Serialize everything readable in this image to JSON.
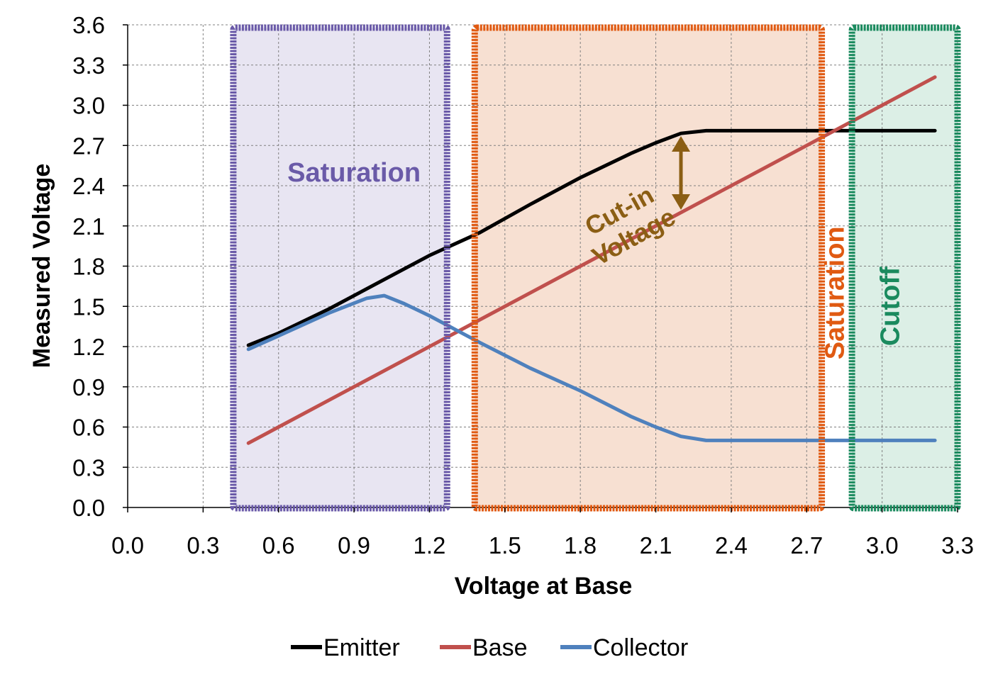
{
  "chart_data": {
    "type": "line",
    "xlabel": "Voltage at Base",
    "ylabel": "Measured Voltage",
    "xlim": [
      0.0,
      3.3
    ],
    "ylim": [
      0.0,
      3.6
    ],
    "xticks": [
      "0.0",
      "0.3",
      "0.6",
      "0.9",
      "1.2",
      "1.5",
      "1.8",
      "2.1",
      "2.4",
      "2.7",
      "3.0",
      "3.3"
    ],
    "yticks": [
      "0.0",
      "0.3",
      "0.6",
      "0.9",
      "1.2",
      "1.5",
      "1.8",
      "2.1",
      "2.4",
      "2.7",
      "3.0",
      "3.3",
      "3.6"
    ],
    "grid": true,
    "legend_position": "bottom",
    "series": [
      {
        "name": "Emitter",
        "color": "#000000",
        "x": [
          0.48,
          0.6,
          0.8,
          1.0,
          1.2,
          1.4,
          1.6,
          1.8,
          2.0,
          2.1,
          2.2,
          2.3,
          2.5,
          2.8,
          3.0,
          3.21
        ],
        "y": [
          1.21,
          1.3,
          1.48,
          1.68,
          1.88,
          2.05,
          2.26,
          2.46,
          2.64,
          2.72,
          2.79,
          2.81,
          2.81,
          2.81,
          2.81,
          2.81
        ]
      },
      {
        "name": "Base",
        "color": "#c0504d",
        "x": [
          0.48,
          3.21
        ],
        "y": [
          0.48,
          3.21
        ]
      },
      {
        "name": "Collector",
        "color": "#4f81bd",
        "x": [
          0.48,
          0.6,
          0.8,
          0.95,
          1.02,
          1.1,
          1.2,
          1.3,
          1.4,
          1.6,
          1.8,
          2.0,
          2.1,
          2.2,
          2.3,
          2.5,
          3.21
        ],
        "y": [
          1.18,
          1.28,
          1.45,
          1.56,
          1.58,
          1.52,
          1.43,
          1.33,
          1.23,
          1.04,
          0.87,
          0.68,
          0.6,
          0.53,
          0.5,
          0.5,
          0.5
        ]
      }
    ],
    "regions": [
      {
        "label": "Saturation",
        "x_range": [
          0.42,
          1.27
        ],
        "color": "#6a5aa8",
        "fill": "#e8e5f2",
        "label_orientation": "horizontal"
      },
      {
        "label": "Saturation",
        "x_range": [
          1.38,
          2.76
        ],
        "color": "#e05a12",
        "fill": "#f7e0d2",
        "label_orientation": "vertical"
      },
      {
        "label": "Cutoff",
        "x_range": [
          2.88,
          3.3
        ],
        "color": "#1a8a5e",
        "fill": "#dcefe6",
        "label_orientation": "vertical"
      }
    ],
    "annotations": [
      {
        "label": "Cut-in Voltage",
        "color": "#8b5e14",
        "arrow_x": 2.2,
        "arrow_y_range": [
          2.22,
          2.77
        ]
      }
    ]
  }
}
